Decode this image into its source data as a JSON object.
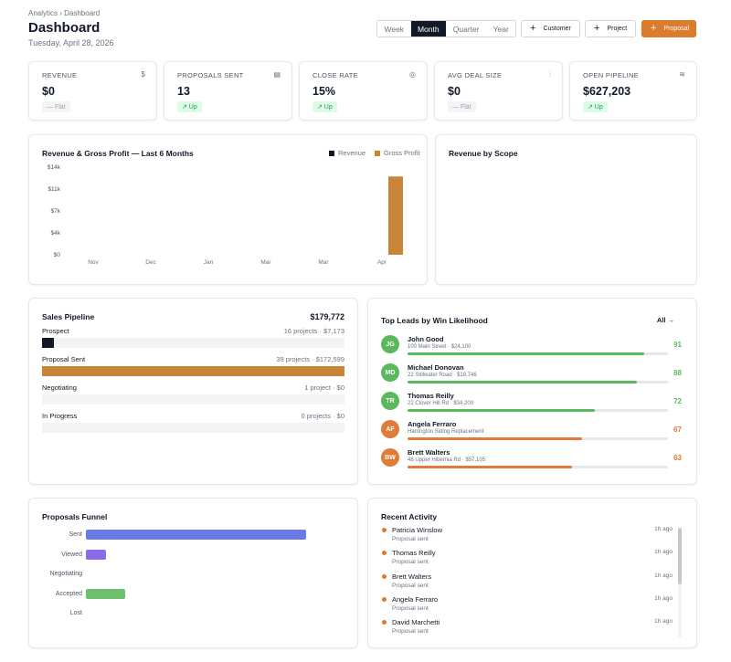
{
  "header": {
    "breadcrumb": "Analytics › Dashboard",
    "title": "Dashboard",
    "date": "Tuesday, April 28, 2026"
  },
  "periods": [
    "Week",
    "Month",
    "Quarter",
    "Year"
  ],
  "selected_period": "Month",
  "actions": {
    "customer": "Customer",
    "project": "Project",
    "proposal": "Proposal"
  },
  "kpis": [
    {
      "label": "REVENUE",
      "icon": "dollar-icon",
      "glyph": "$",
      "value": "$0",
      "trend": "— Flat",
      "trend_type": "flat"
    },
    {
      "label": "PROPOSALS SENT",
      "icon": "document-icon",
      "glyph": "▤",
      "value": "13",
      "trend": "↗ Up",
      "trend_type": "up"
    },
    {
      "label": "CLOSE RATE",
      "icon": "target-icon",
      "glyph": "◎",
      "value": "15%",
      "trend": "↗ Up",
      "trend_type": "up"
    },
    {
      "label": "AVG DEAL SIZE",
      "icon": "bar-chart-icon",
      "glyph": "⫶",
      "value": "$0",
      "trend": "— Flat",
      "trend_type": "flat"
    },
    {
      "label": "OPEN PIPELINE",
      "icon": "layers-icon",
      "glyph": "≋",
      "value": "$627,203",
      "trend": "↗ Up",
      "trend_type": "up"
    }
  ],
  "revenue_chart": {
    "title": "Revenue & Gross Profit — Last 6 Months",
    "legend": [
      "Revenue",
      "Gross Profit"
    ],
    "colors": {
      "Revenue": "#111827",
      "Gross Profit": "#c98537"
    }
  },
  "chart_data": {
    "type": "bar",
    "categories": [
      "Nov",
      "Dec",
      "Jan",
      "Mar",
      "Mar",
      "Apr"
    ],
    "series": [
      {
        "name": "Revenue",
        "values": [
          0,
          0,
          0,
          0,
          0,
          0
        ]
      },
      {
        "name": "Gross Profit",
        "values": [
          0,
          0,
          0,
          0,
          0,
          12500
        ]
      }
    ],
    "yticks": [
      "$14k",
      "$11k",
      "$7k",
      "$4k",
      "$0"
    ],
    "ylim": [
      0,
      14000
    ],
    "title": "Revenue & Gross Profit — Last 6 Months",
    "legend_position": "top-right",
    "grid": false
  },
  "scope": {
    "title": "Revenue by Scope"
  },
  "pipeline": {
    "title": "Sales Pipeline",
    "total": "$179,772",
    "stages": [
      {
        "label": "Prospect",
        "meta": "16 projects · $7,173",
        "fraction": 0.04,
        "color": "#111827"
      },
      {
        "label": "Proposal Sent",
        "meta": "39 projects · $172,599",
        "fraction": 1.0,
        "color": "#c98537"
      },
      {
        "label": "Negotiating",
        "meta": "1 project · $0",
        "fraction": 0,
        "color": "#c98537"
      },
      {
        "label": "In Progress",
        "meta": "0 projects · $0",
        "fraction": 0,
        "color": "#c98537"
      }
    ]
  },
  "leads": {
    "title": "Top Leads by Win Likelihood",
    "all_label": "All →",
    "items": [
      {
        "initials": "JG",
        "name": "John Good",
        "sub": "100 Main Street · $24,100",
        "score": "91",
        "fraction": 0.91,
        "color": "#5cb85c"
      },
      {
        "initials": "MD",
        "name": "Michael Donovan",
        "sub": "22 Stillwater Road · $18,746",
        "score": "88",
        "fraction": 0.88,
        "color": "#5cb85c"
      },
      {
        "initials": "TR",
        "name": "Thomas Reilly",
        "sub": "22 Clover Hill Rd · $34,200",
        "score": "72",
        "fraction": 0.72,
        "color": "#5cb85c"
      },
      {
        "initials": "AF",
        "name": "Angela Ferraro",
        "sub": "Harrington Siding Replacement",
        "score": "67",
        "fraction": 0.67,
        "color": "#e07b39"
      },
      {
        "initials": "BW",
        "name": "Brett Walters",
        "sub": "48 Upper Hibernia Rd · $57,105",
        "score": "63",
        "fraction": 0.63,
        "color": "#e07b39"
      }
    ]
  },
  "funnel": {
    "title": "Proposals Funnel",
    "stages": [
      {
        "label": "Sent",
        "fraction": 1.0,
        "color": "#6b7be3"
      },
      {
        "label": "Viewed",
        "fraction": 0.09,
        "color": "#8b6be8"
      },
      {
        "label": "Negotiating",
        "fraction": 0,
        "color": "#c9a227"
      },
      {
        "label": "Accepted",
        "fraction": 0.18,
        "color": "#6cc070"
      },
      {
        "label": "Lost",
        "fraction": 0,
        "color": "#e06b6b"
      }
    ]
  },
  "activity": {
    "title": "Recent Activity",
    "items": [
      {
        "name": "Patricia Winslow",
        "sub": "Proposal sent",
        "time": "1h ago"
      },
      {
        "name": "Thomas Reilly",
        "sub": "Proposal sent",
        "time": "1h ago"
      },
      {
        "name": "Brett Walters",
        "sub": "Proposal sent",
        "time": "1h ago"
      },
      {
        "name": "Angela Ferraro",
        "sub": "Proposal sent",
        "time": "1h ago"
      },
      {
        "name": "David Marchetti",
        "sub": "Proposal sent",
        "time": "1h ago"
      }
    ]
  }
}
